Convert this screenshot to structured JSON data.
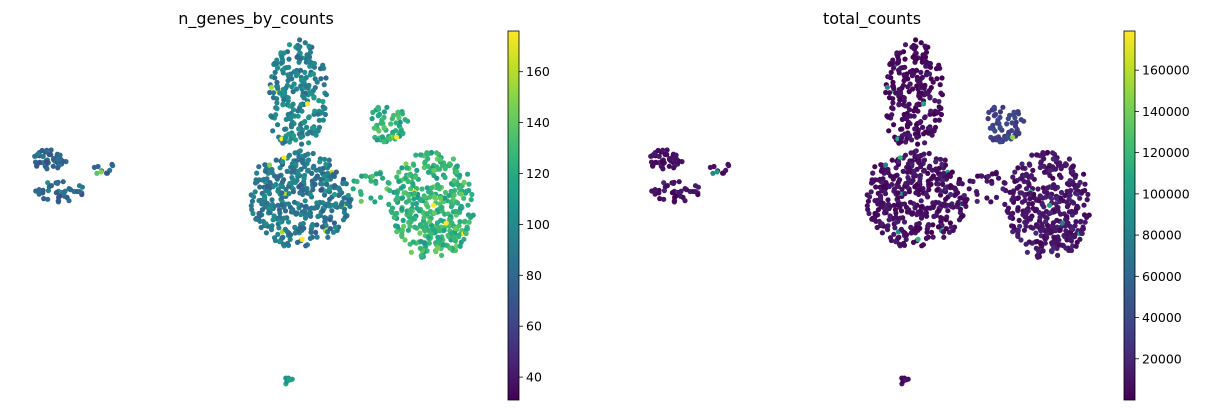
{
  "chart_data": [
    {
      "type": "scatter",
      "title": "n_genes_by_counts",
      "xlabel": "",
      "ylabel": "",
      "colorbar": {
        "colormap": "viridis",
        "min": 31,
        "max": 176,
        "ticks": [
          40,
          60,
          80,
          100,
          120,
          140,
          160
        ],
        "tick_labels": [
          "40",
          "60",
          "80",
          "100",
          "120",
          "140",
          "160"
        ]
      },
      "clusters": [
        {
          "region": "far-left island (upper)",
          "value_level": 0.32
        },
        {
          "region": "far-left island (lower)",
          "value_level": 0.35
        },
        {
          "region": "top lobe",
          "value_level": 0.45
        },
        {
          "region": "central mass",
          "value_level": 0.4
        },
        {
          "region": "upper-right lobe",
          "value_level": 0.65
        },
        {
          "region": "right mass",
          "value_level": 0.66
        },
        {
          "region": "bottom small cluster",
          "value_level": 0.55
        }
      ]
    },
    {
      "type": "scatter",
      "title": "total_counts",
      "xlabel": "",
      "ylabel": "",
      "colorbar": {
        "colormap": "viridis",
        "min": 0,
        "max": 179000,
        "ticks": [
          20000,
          40000,
          60000,
          80000,
          100000,
          120000,
          140000,
          160000
        ],
        "tick_labels": [
          "20000",
          "40000",
          "60000",
          "80000",
          "100000",
          "120000",
          "140000",
          "160000"
        ]
      },
      "clusters": [
        {
          "region": "far-left island (upper)",
          "value_level": 0.04
        },
        {
          "region": "far-left island (lower)",
          "value_level": 0.05
        },
        {
          "region": "top lobe",
          "value_level": 0.03
        },
        {
          "region": "central mass",
          "value_level": 0.04
        },
        {
          "region": "upper-right lobe",
          "value_level": 0.2
        },
        {
          "region": "right mass",
          "value_level": 0.06
        },
        {
          "region": "bottom small cluster",
          "value_level": 0.04
        }
      ]
    }
  ]
}
